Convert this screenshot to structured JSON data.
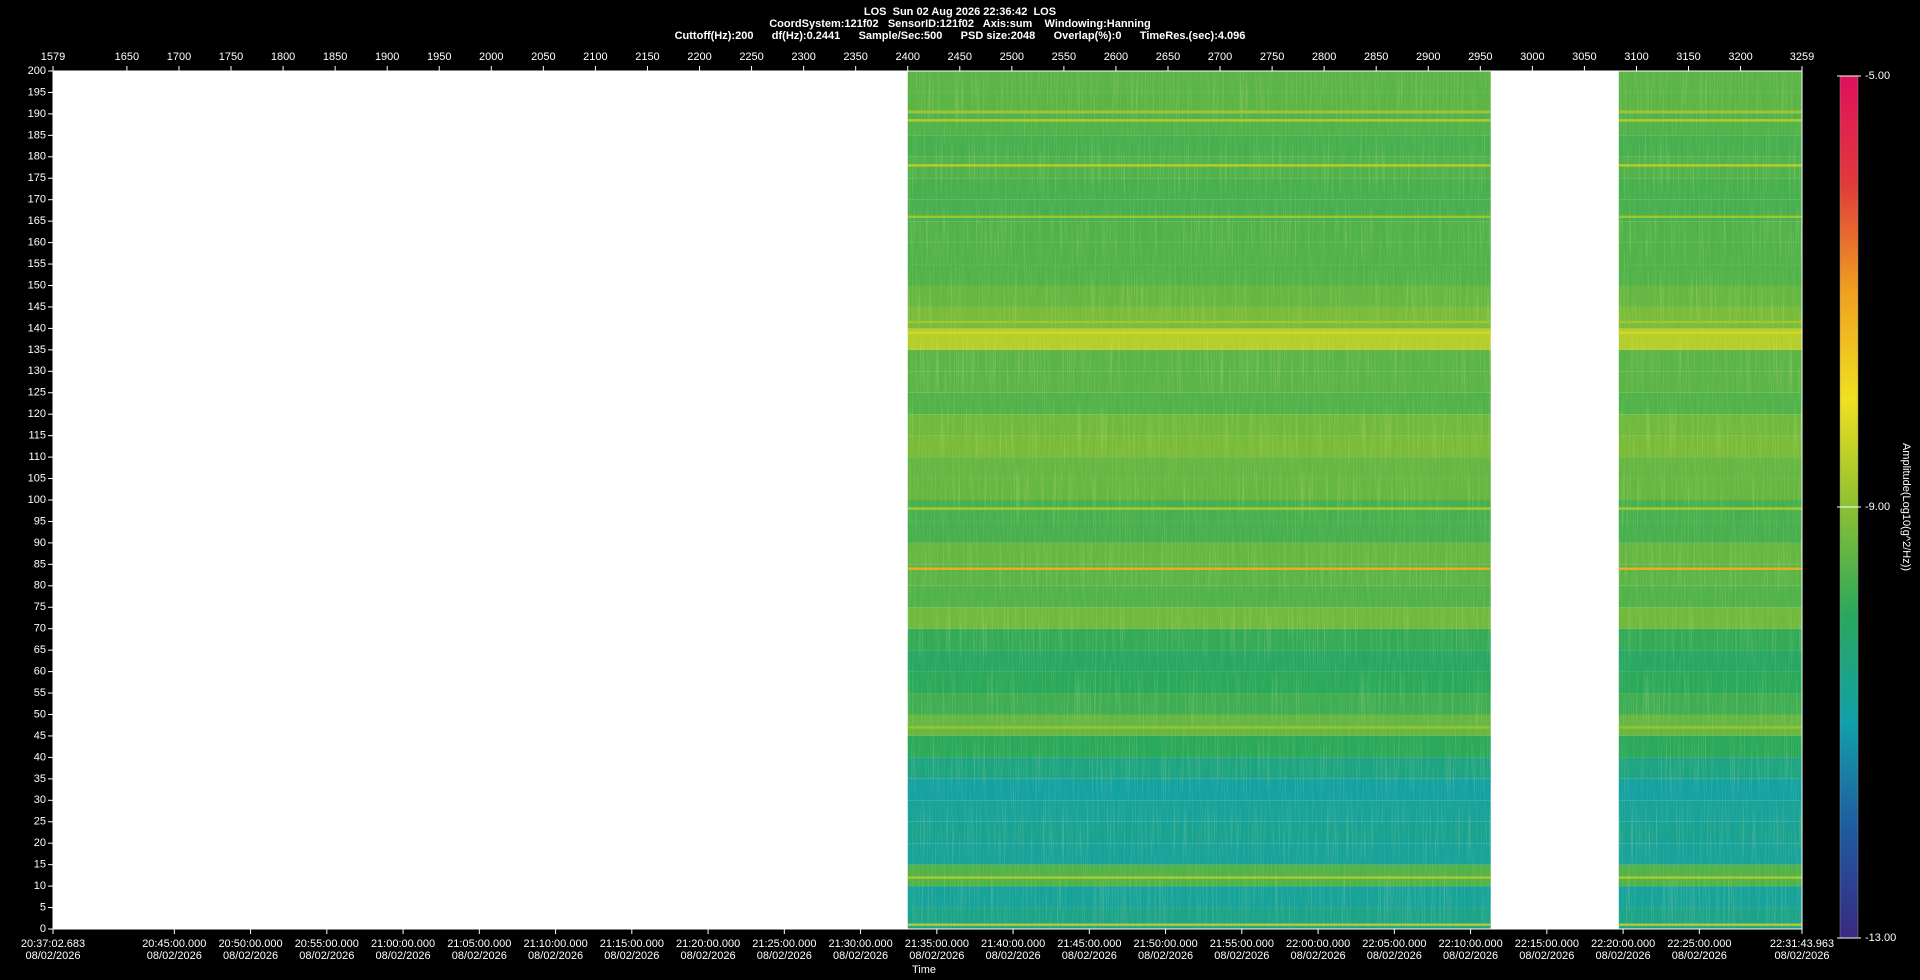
{
  "chart_data": {
    "type": "spectrogram",
    "header": [
      "LOS  Sun 02 Aug 2026 22:36:42  LOS",
      "CoordSystem:121f02   SensorID:121f02   Axis:sum    Windowing:Hanning",
      "Cuttoff(Hz):200      df(Hz):0.2441      Sample/Sec:500      PSD size:2048      Overlap(%):0      TimeRes.(sec):4.096"
    ],
    "x_label": "Time",
    "colorbar_label": "Amplitude(Log10(g^2/Hz))",
    "xlim": [
      1579,
      3259
    ],
    "xticks": [
      1579,
      1650,
      1700,
      1750,
      1800,
      1850,
      1900,
      1950,
      2000,
      2050,
      2100,
      2150,
      2200,
      2250,
      2300,
      2350,
      2400,
      2450,
      2500,
      2550,
      2600,
      2650,
      2700,
      2750,
      2800,
      2850,
      2900,
      2950,
      3000,
      3050,
      3100,
      3150,
      3200,
      3259
    ],
    "x2lim": [
      74222.683,
      81103.963
    ],
    "x2ticks": [
      {
        "value": 74222.683,
        "label": "20:37:02.683"
      },
      {
        "value": 74700,
        "label": "20:45:00.000"
      },
      {
        "value": 75000,
        "label": "20:50:00.000"
      },
      {
        "value": 75300,
        "label": "20:55:00.000"
      },
      {
        "value": 75600,
        "label": "21:00:00.000"
      },
      {
        "value": 75900,
        "label": "21:05:00.000"
      },
      {
        "value": 76200,
        "label": "21:10:00.000"
      },
      {
        "value": 76500,
        "label": "21:15:00.000"
      },
      {
        "value": 76800,
        "label": "21:20:00.000"
      },
      {
        "value": 77100,
        "label": "21:25:00.000"
      },
      {
        "value": 77400,
        "label": "21:30:00.000"
      },
      {
        "value": 77700,
        "label": "21:35:00.000"
      },
      {
        "value": 78000,
        "label": "21:40:00.000"
      },
      {
        "value": 78300,
        "label": "21:45:00.000"
      },
      {
        "value": 78600,
        "label": "21:50:00.000"
      },
      {
        "value": 78900,
        "label": "21:55:00.000"
      },
      {
        "value": 79200,
        "label": "22:00:00.000"
      },
      {
        "value": 79500,
        "label": "22:05:00.000"
      },
      {
        "value": 79800,
        "label": "22:10:00.000"
      },
      {
        "value": 80100,
        "label": "22:15:00.000"
      },
      {
        "value": 80400,
        "label": "22:20:00.000"
      },
      {
        "value": 80700,
        "label": "22:25:00.000"
      },
      {
        "value": 81103.963,
        "label": "22:31:43.963"
      }
    ],
    "x2tick_date": "08/02/2026",
    "ylim": [
      0,
      200
    ],
    "yticks": [
      0,
      5,
      10,
      15,
      20,
      25,
      30,
      35,
      40,
      45,
      50,
      55,
      60,
      65,
      70,
      75,
      80,
      85,
      90,
      95,
      100,
      105,
      110,
      115,
      120,
      125,
      130,
      135,
      140,
      145,
      150,
      155,
      160,
      165,
      170,
      175,
      180,
      185,
      190,
      195,
      200
    ],
    "clim": [
      -13,
      -5
    ],
    "cticks": [
      {
        "value": -5,
        "label": "-5.00"
      },
      {
        "value": -9,
        "label": "-9.00"
      },
      {
        "value": -13,
        "label": "-13.00"
      }
    ],
    "colormap": [
      "#3a2a82",
      "#1f5aa0",
      "#12a0aa",
      "#2aa85c",
      "#8cc032",
      "#f0e020",
      "#f0a020",
      "#e03a3a",
      "#e0105c"
    ],
    "segments": [
      [
        2400,
        2960
      ],
      [
        3083,
        3259
      ]
    ],
    "frequency_bins": [
      0,
      5,
      10,
      15,
      20,
      25,
      30,
      35,
      40,
      45,
      50,
      55,
      60,
      65,
      70,
      75,
      80,
      85,
      90,
      95,
      100,
      105,
      110,
      115,
      120,
      125,
      130,
      135,
      140,
      145,
      150,
      155,
      160,
      165,
      170,
      175,
      180,
      185,
      190,
      195,
      200
    ],
    "amplitudes": [
      -10.6,
      -10.8,
      -9.6,
      -10.8,
      -10.7,
      -10.8,
      -10.9,
      -10.5,
      -10.0,
      -9.4,
      -9.8,
      -10.0,
      -10.1,
      -9.9,
      -9.3,
      -9.6,
      -9.5,
      -9.4,
      -9.7,
      -9.7,
      -9.4,
      -9.4,
      -9.2,
      -9.3,
      -9.6,
      -9.5,
      -9.5,
      -8.6,
      -9.2,
      -9.4,
      -9.6,
      -9.6,
      -9.6,
      -9.7,
      -9.7,
      -9.6,
      -9.7,
      -9.6,
      -9.5,
      -9.5
    ],
    "lines_hz": [
      84,
      139,
      178,
      98,
      188.5,
      190.5,
      166,
      141.5,
      47,
      12,
      1
    ],
    "lines_amp": [
      -7.2,
      -8.3,
      -8.6,
      -8.7,
      -8.6,
      -8.8,
      -8.8,
      -8.8,
      -8.9,
      -8.7,
      -8.6
    ]
  }
}
